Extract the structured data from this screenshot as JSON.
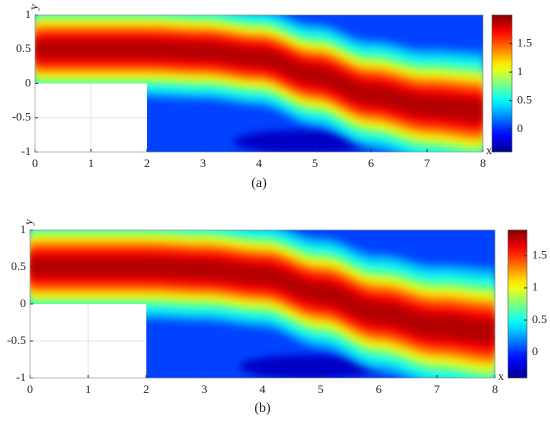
{
  "chart_data": [
    {
      "type": "heatmap",
      "caption": "(a)",
      "xlabel": "x",
      "ylabel": "y",
      "xlim": [
        0,
        8
      ],
      "ylim": [
        -1,
        1
      ],
      "xticks": [
        0,
        1,
        2,
        3,
        4,
        5,
        6,
        7,
        8
      ],
      "yticks": [
        -1,
        -0.5,
        0,
        0.5,
        1
      ],
      "colormap": "jet",
      "clim": [
        -0.4,
        2.0
      ],
      "cticks": [
        0,
        0.5,
        1,
        1.5
      ],
      "obstacle": {
        "x": [
          0,
          2
        ],
        "y": [
          -1,
          0
        ]
      },
      "centerline": {
        "x": [
          0,
          2,
          3,
          4,
          5,
          6,
          7,
          8
        ],
        "y": [
          0.5,
          0.5,
          0.47,
          0.38,
          0.12,
          -0.16,
          -0.33,
          -0.4
        ]
      }
    },
    {
      "type": "heatmap",
      "caption": "(b)",
      "xlabel": "x",
      "ylabel": "y",
      "xlim": [
        0,
        8
      ],
      "ylim": [
        -1,
        1
      ],
      "xticks": [
        0,
        1,
        2,
        3,
        4,
        5,
        6,
        7,
        8
      ],
      "yticks": [
        -1,
        -0.5,
        0,
        0.5,
        1
      ],
      "colormap": "jet",
      "clim": [
        -0.4,
        1.9
      ],
      "cticks": [
        0,
        0.5,
        1,
        1.5
      ],
      "obstacle": {
        "x": [
          0,
          2
        ],
        "y": [
          -1,
          0
        ]
      },
      "centerline": {
        "x": [
          0,
          2,
          3,
          4,
          5,
          6,
          7,
          8
        ],
        "y": [
          0.5,
          0.5,
          0.47,
          0.39,
          0.15,
          -0.12,
          -0.3,
          -0.38
        ]
      }
    }
  ]
}
